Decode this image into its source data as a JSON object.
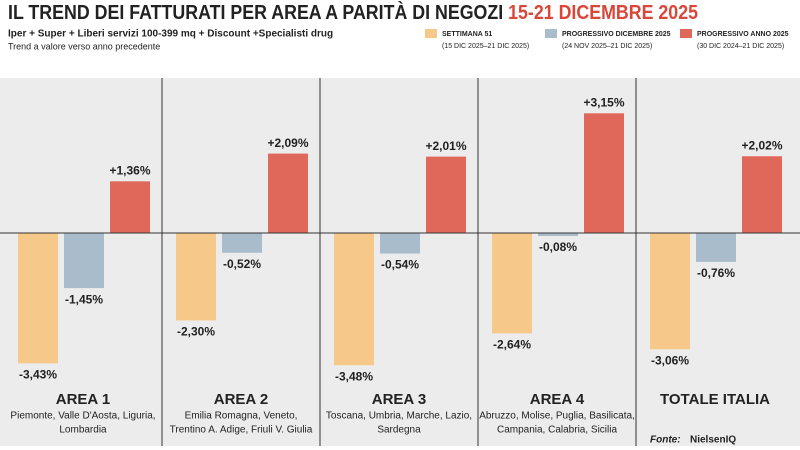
{
  "chart_data": {
    "type": "bar",
    "title": "IL TREND DEI FATTURATI PER AREA A PARITÀ DI NEGOZI",
    "title_highlight": "15-21 DICEMBRE 2025",
    "subtitle": "Iper + Super + Liberi servizi 100-399 mq + Discount +Specialisti drug",
    "note": "Trend a valore verso anno precedente",
    "categories": [
      "AREA 1",
      "AREA 2",
      "AREA 3",
      "AREA 4",
      "TOTALE ITALIA"
    ],
    "regions": [
      [
        "Piemonte, Valle D'Aosta, Liguria,",
        "Lombardia"
      ],
      [
        "Emilia Romagna, Veneto,",
        "Trentino A. Adige, Friuli V. Giulia"
      ],
      [
        "Toscana, Umbria, Marche, Lazio,",
        "Sardegna"
      ],
      [
        "Abruzzo, Molise, Puglia, Basilicata,",
        "Campania, Calabria, Sicilia"
      ],
      null
    ],
    "series": [
      {
        "name": "SETTIMANA 51",
        "period": "(15 DIC 2025–21 DIC 2025)",
        "color": "#f6c98a",
        "values": [
          -3.43,
          -2.3,
          -3.48,
          -2.64,
          -3.06
        ],
        "value_labels": [
          "-3,43%",
          "-2,30%",
          "-3,48%",
          "-2,64%",
          "-3,06%"
        ]
      },
      {
        "name": "PROGRESSIVO DICEMBRE 2025",
        "period": "(24 NOV 2025–21 DIC 2025)",
        "color": "#a9bccb",
        "values": [
          -1.45,
          -0.52,
          -0.54,
          -0.08,
          -0.76
        ],
        "value_labels": [
          "-1,45%",
          "-0,52%",
          "-0,54%",
          "-0,08%",
          "-0,76%"
        ]
      },
      {
        "name": "PROGRESSIVO ANNO 2025",
        "period": "(30 DIC 2024–21 DIC 2025)",
        "color": "#e0685a",
        "values": [
          1.36,
          2.09,
          2.01,
          3.15,
          2.02
        ],
        "value_labels": [
          "+1,36%",
          "+2,09%",
          "+2,01%",
          "+3,15%",
          "+2,02%"
        ]
      }
    ],
    "source_label": "Fonte:",
    "source": "NielsenIQ"
  }
}
